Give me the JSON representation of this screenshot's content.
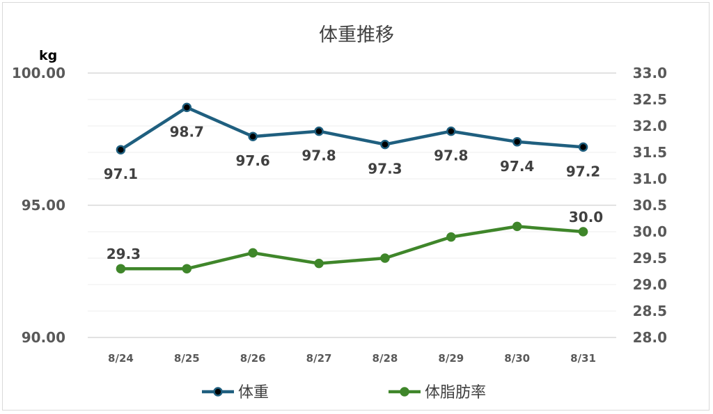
{
  "chart_data": {
    "type": "line",
    "title": "体重推移",
    "y_left_unit": "kg",
    "categories": [
      "8/24",
      "8/25",
      "8/26",
      "8/27",
      "8/28",
      "8/29",
      "8/30",
      "8/31"
    ],
    "y_left": {
      "range": [
        90,
        100
      ],
      "ticks": [
        "100.00",
        "95.00",
        "90.00"
      ],
      "tick_values": [
        100,
        95,
        90
      ]
    },
    "y_right": {
      "range": [
        28,
        33
      ],
      "ticks": [
        "33.0",
        "32.5",
        "32.0",
        "31.5",
        "31.0",
        "30.5",
        "30.0",
        "29.5",
        "29.0",
        "28.5",
        "28.0"
      ],
      "tick_values": [
        33,
        32.5,
        32,
        31.5,
        31,
        30.5,
        30,
        29.5,
        29,
        28.5,
        28
      ]
    },
    "grid": true,
    "legend_position": "bottom",
    "series": [
      {
        "name": "体重",
        "axis": "left",
        "color": "#1f5f7f",
        "marker_fill": "#000000",
        "values": [
          97.1,
          98.7,
          97.6,
          97.8,
          97.3,
          97.8,
          97.4,
          97.2
        ],
        "labels": [
          "97.1",
          "98.7",
          "97.6",
          "97.8",
          "97.3",
          "97.8",
          "97.4",
          "97.2"
        ]
      },
      {
        "name": "体脂肪率",
        "axis": "right",
        "color": "#3f862a",
        "marker_fill": "#3f862a",
        "values": [
          29.3,
          29.3,
          29.6,
          29.4,
          29.5,
          29.9,
          30.1,
          30.0
        ],
        "labels": [
          "29.3",
          "30.0"
        ],
        "label_indices": [
          0,
          7
        ]
      }
    ]
  }
}
